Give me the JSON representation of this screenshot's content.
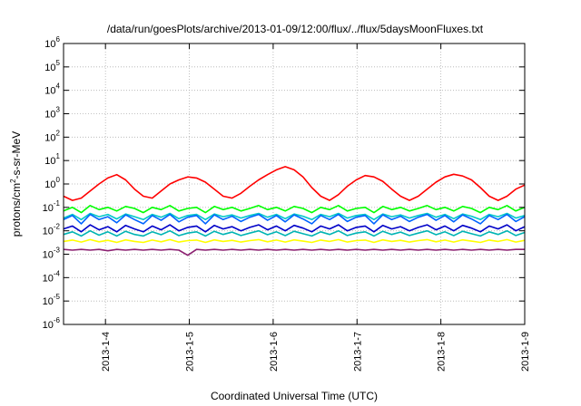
{
  "chart_data": {
    "type": "line",
    "title": "/data/run/goesPlots/archive/2013-01-09/12:00/flux/../flux/5daysMoonFluxes.txt",
    "xlabel": "Coordinated Universal Time (UTC)",
    "ylabel": {
      "pre": "protons/cm",
      "sup": "2",
      "post": "-s-sr-MeV"
    },
    "yscale": "log",
    "ylim_exp": [
      -6,
      6
    ],
    "y_ticks": [
      {
        "base": "10",
        "exp": "6"
      },
      {
        "base": "10",
        "exp": "5"
      },
      {
        "base": "10",
        "exp": "4"
      },
      {
        "base": "10",
        "exp": "3"
      },
      {
        "base": "10",
        "exp": "2"
      },
      {
        "base": "10",
        "exp": "1"
      },
      {
        "base": "10",
        "exp": "0"
      },
      {
        "base": "10",
        "exp": "-1"
      },
      {
        "base": "10",
        "exp": "-2"
      },
      {
        "base": "10",
        "exp": "-3"
      },
      {
        "base": "10",
        "exp": "-4"
      },
      {
        "base": "10",
        "exp": "-5"
      },
      {
        "base": "10",
        "exp": "-6"
      }
    ],
    "x_range_days": [
      0,
      5.5
    ],
    "x_ticks": [
      "2013-1-4",
      "2013-1-5",
      "2013-1-6",
      "2013-1-7",
      "2013-1-8",
      "2013-1-9"
    ],
    "grid": true,
    "series": [
      {
        "color": "#ff0000",
        "values": [
          0.3,
          0.2,
          0.25,
          0.5,
          1.0,
          1.8,
          2.5,
          1.5,
          0.6,
          0.3,
          0.25,
          0.5,
          1.0,
          1.5,
          2.0,
          1.8,
          1.2,
          0.6,
          0.3,
          0.25,
          0.4,
          0.8,
          1.5,
          2.5,
          4.0,
          5.5,
          4.0,
          2.0,
          0.7,
          0.3,
          0.2,
          0.35,
          0.8,
          1.5,
          2.3,
          2.0,
          1.3,
          0.6,
          0.3,
          0.2,
          0.3,
          0.6,
          1.2,
          2.0,
          2.6,
          2.2,
          1.5,
          0.7,
          0.3,
          0.2,
          0.3,
          0.6,
          0.9
        ]
      },
      {
        "color": "#00ff00",
        "values": [
          0.07,
          0.1,
          0.06,
          0.12,
          0.08,
          0.1,
          0.07,
          0.11,
          0.09,
          0.06,
          0.1,
          0.08,
          0.12,
          0.07,
          0.09,
          0.1,
          0.06,
          0.11,
          0.08,
          0.1,
          0.07,
          0.09,
          0.12,
          0.08,
          0.1,
          0.07,
          0.11,
          0.09,
          0.06,
          0.1,
          0.08,
          0.12,
          0.07,
          0.09,
          0.1,
          0.06,
          0.11,
          0.08,
          0.1,
          0.07,
          0.09,
          0.12,
          0.08,
          0.1,
          0.07,
          0.11,
          0.09,
          0.06,
          0.1,
          0.08,
          0.12,
          0.07,
          0.1
        ]
      },
      {
        "color": "#00c8c8",
        "values": [
          0.035,
          0.05,
          0.03,
          0.055,
          0.04,
          0.05,
          0.032,
          0.052,
          0.04,
          0.03,
          0.05,
          0.038,
          0.055,
          0.033,
          0.045,
          0.05,
          0.03,
          0.052,
          0.04,
          0.048,
          0.035,
          0.045,
          0.055,
          0.038,
          0.05,
          0.033,
          0.052,
          0.042,
          0.03,
          0.05,
          0.04,
          0.055,
          0.035,
          0.045,
          0.05,
          0.03,
          0.052,
          0.04,
          0.048,
          0.035,
          0.045,
          0.055,
          0.038,
          0.05,
          0.033,
          0.052,
          0.042,
          0.03,
          0.05,
          0.04,
          0.055,
          0.035,
          0.045
        ]
      },
      {
        "color": "#0064ff",
        "values": [
          0.03,
          0.045,
          0.02,
          0.05,
          0.03,
          0.04,
          0.022,
          0.048,
          0.03,
          0.02,
          0.045,
          0.028,
          0.05,
          0.024,
          0.038,
          0.045,
          0.02,
          0.048,
          0.03,
          0.042,
          0.025,
          0.038,
          0.05,
          0.028,
          0.045,
          0.024,
          0.048,
          0.032,
          0.02,
          0.045,
          0.03,
          0.05,
          0.025,
          0.038,
          0.045,
          0.02,
          0.048,
          0.03,
          0.042,
          0.025,
          0.038,
          0.05,
          0.028,
          0.045,
          0.024,
          0.048,
          0.032,
          0.02,
          0.045,
          0.03,
          0.05,
          0.025,
          0.04
        ]
      },
      {
        "color": "#0000c8",
        "values": [
          0.012,
          0.016,
          0.009,
          0.018,
          0.011,
          0.015,
          0.009,
          0.017,
          0.012,
          0.009,
          0.016,
          0.011,
          0.018,
          0.01,
          0.014,
          0.016,
          0.009,
          0.017,
          0.012,
          0.015,
          0.01,
          0.014,
          0.018,
          0.011,
          0.016,
          0.01,
          0.017,
          0.013,
          0.009,
          0.016,
          0.012,
          0.018,
          0.01,
          0.014,
          0.016,
          0.009,
          0.017,
          0.012,
          0.015,
          0.01,
          0.014,
          0.018,
          0.011,
          0.016,
          0.01,
          0.017,
          0.013,
          0.009,
          0.016,
          0.012,
          0.018,
          0.01,
          0.015
        ]
      },
      {
        "color": "#00b4b4",
        "values": [
          0.007,
          0.009,
          0.006,
          0.01,
          0.0065,
          0.009,
          0.006,
          0.0095,
          0.007,
          0.006,
          0.009,
          0.0068,
          0.01,
          0.0062,
          0.008,
          0.009,
          0.006,
          0.0095,
          0.007,
          0.0088,
          0.0063,
          0.008,
          0.01,
          0.0068,
          0.009,
          0.0062,
          0.0095,
          0.0075,
          0.006,
          0.009,
          0.007,
          0.01,
          0.0063,
          0.008,
          0.009,
          0.006,
          0.0095,
          0.007,
          0.0088,
          0.0063,
          0.008,
          0.01,
          0.0068,
          0.009,
          0.0062,
          0.0095,
          0.0075,
          0.006,
          0.009,
          0.007,
          0.01,
          0.0063,
          0.0085
        ]
      },
      {
        "color": "#ffff00",
        "values": [
          0.0035,
          0.004,
          0.0033,
          0.0042,
          0.0034,
          0.0039,
          0.0032,
          0.0041,
          0.0035,
          0.0032,
          0.004,
          0.0034,
          0.0042,
          0.0033,
          0.0038,
          0.004,
          0.0032,
          0.0041,
          0.0035,
          0.0039,
          0.0033,
          0.0038,
          0.0042,
          0.0034,
          0.004,
          0.0033,
          0.0041,
          0.0036,
          0.0032,
          0.004,
          0.0035,
          0.0042,
          0.0033,
          0.0038,
          0.004,
          0.0032,
          0.0041,
          0.0035,
          0.0039,
          0.0033,
          0.0038,
          0.0042,
          0.0034,
          0.004,
          0.0033,
          0.0041,
          0.0036,
          0.0032,
          0.004,
          0.0035,
          0.0042,
          0.0033,
          0.0039
        ]
      },
      {
        "color": "#8b2070",
        "values": [
          0.0016,
          0.0015,
          0.0016,
          0.0015,
          0.0016,
          0.0014,
          0.0016,
          0.0015,
          0.0016,
          0.0015,
          0.0016,
          0.0015,
          0.0016,
          0.0015,
          0.0009,
          0.0016,
          0.0015,
          0.0016,
          0.0015,
          0.0016,
          0.0015,
          0.0016,
          0.0015,
          0.0016,
          0.0015,
          0.0016,
          0.0015,
          0.0016,
          0.0015,
          0.0016,
          0.0015,
          0.0016,
          0.0015,
          0.0016,
          0.0015,
          0.0016,
          0.0015,
          0.0016,
          0.0015,
          0.0016,
          0.0015,
          0.0016,
          0.0015,
          0.0016,
          0.0015,
          0.0016,
          0.0015,
          0.0016,
          0.0015,
          0.0016,
          0.0015,
          0.0016,
          0.0016
        ]
      }
    ]
  }
}
